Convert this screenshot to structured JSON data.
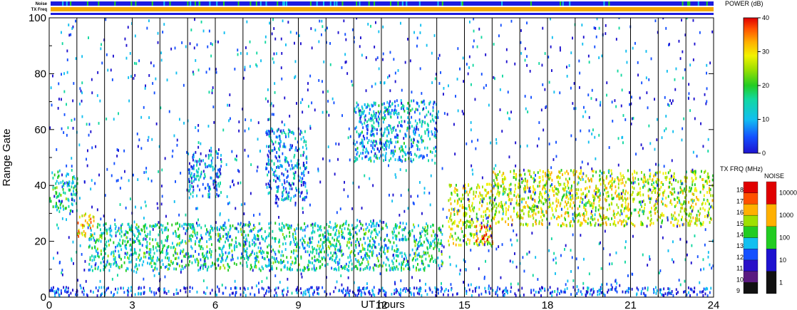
{
  "chart_data": {
    "type": "heatmap",
    "title": "",
    "xlabel": "UT hours",
    "ylabel": "Range Gate",
    "xlim": [
      0,
      24
    ],
    "ylim": [
      0,
      100
    ],
    "x_ticks": [
      "0",
      "3",
      "6",
      "9",
      "12",
      "15",
      "18",
      "21",
      "24"
    ],
    "y_ticks": [
      "0",
      "20",
      "40",
      "60",
      "80",
      "100"
    ],
    "vertical_lines_every_hours": 1,
    "top_bands": [
      {
        "label": "Noise",
        "color": "#1c1ce0"
      },
      {
        "label": "TX Freq",
        "color": "#f5a800"
      }
    ],
    "power_scale": {
      "label": "POWER (dB)",
      "range": [
        0,
        40
      ],
      "ticks": [
        "0",
        "10",
        "20",
        "30",
        "40"
      ]
    },
    "txfreq_scale": {
      "label": "TX FRQ (MHz)",
      "ticks": [
        "9",
        "10",
        "11",
        "12",
        "13",
        "14",
        "15",
        "16",
        "17",
        "18"
      ]
    },
    "noise_scale": {
      "label": "NOISE",
      "ticks": [
        "1",
        "10",
        "100",
        "1000",
        "10000"
      ]
    },
    "echo_regions": [
      {
        "x": [
          0,
          1
        ],
        "gate": [
          30,
          45
        ],
        "power_db": 14
      },
      {
        "x": [
          1,
          1.6
        ],
        "gate": [
          21,
          30
        ],
        "power_db": 28
      },
      {
        "x": [
          1.4,
          14.2
        ],
        "gate": [
          9,
          26
        ],
        "power_db": 14
      },
      {
        "x": [
          5,
          6.2
        ],
        "gate": [
          35,
          52
        ],
        "power_db": 9
      },
      {
        "x": [
          7.8,
          9.3
        ],
        "gate": [
          34,
          60
        ],
        "power_db": 9
      },
      {
        "x": [
          11,
          14
        ],
        "gate": [
          48,
          70
        ],
        "power_db": 10
      },
      {
        "x": [
          14.4,
          16
        ],
        "gate": [
          18,
          40
        ],
        "power_db": 24
      },
      {
        "x": [
          15.4,
          16
        ],
        "gate": [
          19,
          25
        ],
        "power_db": 36
      },
      {
        "x": [
          16,
          24
        ],
        "gate": [
          25,
          45
        ],
        "power_db": 24
      },
      {
        "x": [
          0,
          24
        ],
        "gate": [
          0,
          3
        ],
        "power_db": 5
      }
    ]
  }
}
